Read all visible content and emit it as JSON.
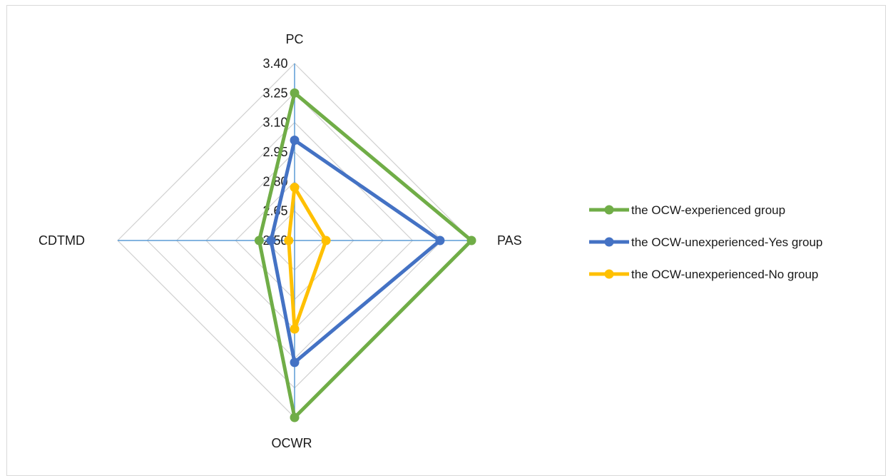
{
  "chart_data": {
    "type": "radar",
    "categories": [
      "PC",
      "PAS",
      "OCWR",
      "CDTMD"
    ],
    "r_ticks": [
      "2.50",
      "2.65",
      "2.80",
      "2.95",
      "3.10",
      "3.25",
      "3.40"
    ],
    "rlim": [
      2.5,
      3.4
    ],
    "series": [
      {
        "name": "the OCW-experienced group",
        "color": "#70ad47",
        "values": [
          3.25,
          3.4,
          3.4,
          2.68
        ]
      },
      {
        "name": "the OCW-unexperienced-Yes group",
        "color": "#4472c4",
        "values": [
          3.01,
          3.24,
          3.12,
          2.62
        ]
      },
      {
        "name": "the OCW-unexperienced-No group",
        "color": "#ffc000",
        "values": [
          2.77,
          2.66,
          2.95,
          2.53
        ]
      }
    ],
    "grid": true,
    "legend_position": "right"
  }
}
